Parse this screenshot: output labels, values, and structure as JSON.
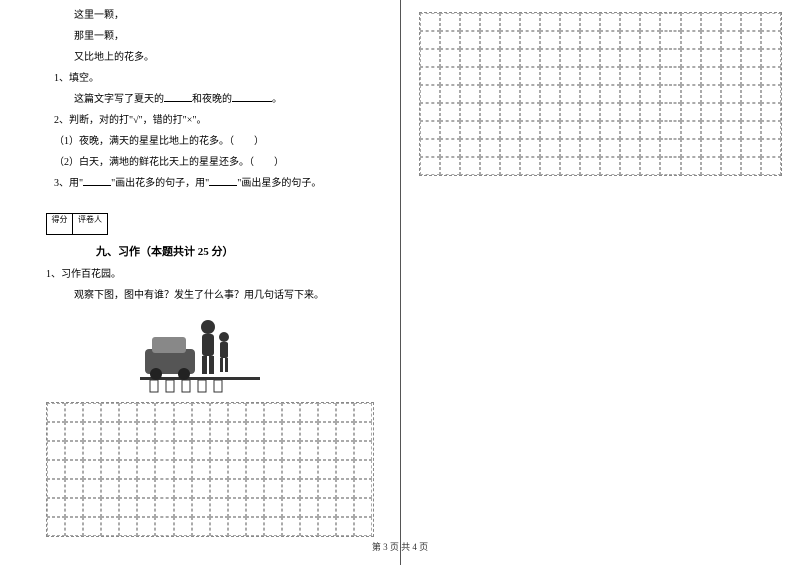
{
  "poem": {
    "line1": "这里一颗，",
    "line2": "那里一颗，",
    "line3": "又比地上的花多。"
  },
  "q1": {
    "num": "1、填空。",
    "text_a": "这篇文字写了夏天的",
    "text_b": "和夜晚的",
    "text_c": "。"
  },
  "q2": {
    "num": "2、判断，对的打\"√\"，错的打\"×\"。",
    "sub1": "（1）夜晚，满天的星星比地上的花多。（　　）",
    "sub2": "（2）白天，满地的鲜花比天上的星星还多。（　　）"
  },
  "q3": {
    "num": "3、用\"",
    "mid": "\"画出花多的句子，用\"",
    "end": "\"画出星多的句子。"
  },
  "section9": {
    "score_label1": "得分",
    "score_label2": "评卷人",
    "title": "九、习作（本题共计 25 分）"
  },
  "writing": {
    "num": "1、习作百花园。",
    "prompt": "观察下图，图中有谁？发生了什么事？用几句话写下来。"
  },
  "footer": "第 3 页 共 4 页",
  "grid": {
    "left_rows": 7,
    "left_cols": 18,
    "right_rows": 9,
    "right_cols": 18
  },
  "colors": {
    "text": "#000000",
    "border": "#888888",
    "cell_border": "#aaaaaa"
  }
}
